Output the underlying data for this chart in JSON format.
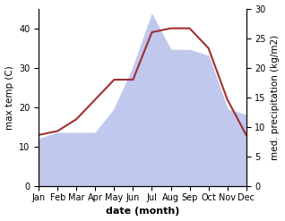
{
  "months": [
    "Jan",
    "Feb",
    "Mar",
    "Apr",
    "May",
    "Jun",
    "Jul",
    "Aug",
    "Sep",
    "Oct",
    "Nov",
    "Dec"
  ],
  "month_indices": [
    1,
    2,
    3,
    4,
    5,
    6,
    7,
    8,
    9,
    10,
    11,
    12
  ],
  "temperature": [
    13,
    14,
    17,
    22,
    27,
    27,
    39,
    40,
    40,
    35,
    22,
    13
  ],
  "precipitation": [
    8,
    9,
    9,
    9,
    13,
    20,
    29,
    23,
    23,
    22,
    13,
    12
  ],
  "temp_color": "#a03030",
  "precip_fill_color": "#c0c8ee",
  "precip_edge_color": "#9099cc",
  "temp_ylim": [
    0,
    45
  ],
  "precip_ylim": [
    0,
    30
  ],
  "temp_yticks": [
    0,
    10,
    20,
    30,
    40
  ],
  "precip_yticks": [
    0,
    5,
    10,
    15,
    20,
    25,
    30
  ],
  "xlabel": "date (month)",
  "ylabel_left": "max temp (C)",
  "ylabel_right": "med. precipitation (kg/m2)",
  "xlabel_fontsize": 8,
  "ylabel_fontsize": 7.5,
  "tick_fontsize": 7
}
